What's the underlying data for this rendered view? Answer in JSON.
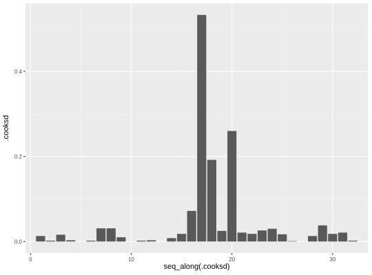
{
  "chart_data": {
    "type": "bar",
    "xlabel": "seq_along(.cooksd)",
    "ylabel": ".cooksd",
    "x": [
      1,
      2,
      3,
      4,
      5,
      6,
      7,
      8,
      9,
      10,
      11,
      12,
      13,
      14,
      15,
      16,
      17,
      18,
      19,
      20,
      21,
      22,
      23,
      24,
      25,
      26,
      27,
      28,
      29,
      30,
      31,
      32
    ],
    "values": [
      0.013,
      0.002,
      0.016,
      0.003,
      0,
      0.002,
      0.031,
      0.031,
      0.01,
      0,
      0.002,
      0.003,
      0,
      0.008,
      0.018,
      0.072,
      0.533,
      0.192,
      0.025,
      0.26,
      0.021,
      0.018,
      0.026,
      0.03,
      0.017,
      0.001,
      0,
      0.013,
      0.038,
      0.018,
      0.021,
      0.002
    ],
    "xlim": [
      -0.5,
      33.5
    ],
    "ylim": [
      -0.027,
      0.56
    ],
    "x_ticks": [
      0,
      10,
      20,
      30
    ],
    "x_tick_labels": [
      "0",
      "10",
      "20",
      "30"
    ],
    "y_ticks": [
      0.0,
      0.2,
      0.4
    ],
    "y_tick_labels": [
      "0.0",
      "0.2",
      "0.4"
    ],
    "grid": true,
    "colors": {
      "bar": "#595959",
      "panel": "#ebebeb",
      "grid_major": "#ffffff",
      "grid_minor": "#f5f5f5"
    }
  }
}
